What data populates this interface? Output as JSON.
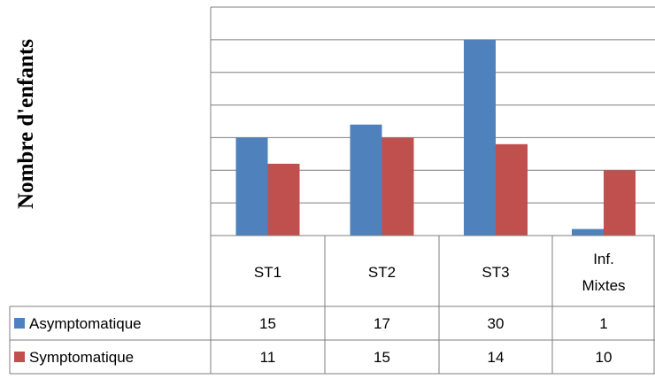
{
  "chart_data": {
    "type": "bar",
    "ylabel": "Nombre d'enfants",
    "xlabel": "",
    "title": "",
    "categories": [
      "ST1",
      "ST2",
      "ST3",
      "Inf. Mixtes"
    ],
    "series": [
      {
        "name": "Asymptomatique",
        "values": [
          15,
          17,
          30,
          1
        ],
        "color": "#4f81bd"
      },
      {
        "name": "Symptomatique",
        "values": [
          11,
          15,
          14,
          10
        ],
        "color": "#c0504d"
      }
    ],
    "ylim": [
      0,
      35
    ],
    "ytick_step": 5,
    "grid": true,
    "legend": "data-table"
  }
}
